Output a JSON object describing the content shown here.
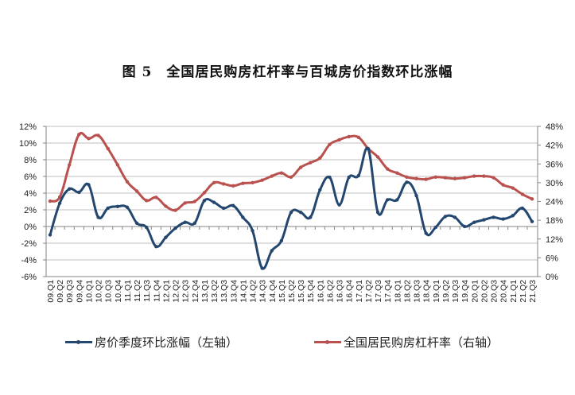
{
  "title": "图 5　全国居民购房杠杆率与百城房价指数环比涨幅",
  "legend": {
    "series1": "房价季度环比涨幅（左轴）",
    "series2": "全国居民购房杠杆率（右轴）"
  },
  "colors": {
    "series1": "#24476F",
    "series2": "#B9514F",
    "grid": "#BFBFBF",
    "axis": "#868686"
  },
  "chart_data": {
    "type": "line",
    "title": "图 5　全国居民购房杠杆率与百城房价指数环比涨幅",
    "xlabel": "",
    "ylabel": "",
    "y2label": "",
    "grid": true,
    "legend_position": "bottom",
    "ylim": [
      -6,
      12
    ],
    "y_ticks": [
      "12%",
      "10%",
      "8%",
      "6%",
      "4%",
      "2%",
      "0%",
      "-2%",
      "-4%",
      "-6%"
    ],
    "y2lim": [
      0,
      48
    ],
    "y2_ticks": [
      "48%",
      "42%",
      "36%",
      "30%",
      "24%",
      "18%",
      "12%",
      "6%",
      "0%"
    ],
    "categories": [
      "09.Q1",
      "09.Q2",
      "09.Q3",
      "09.Q4",
      "10.Q1",
      "10.Q2",
      "10.Q3",
      "10.Q4",
      "11.Q1",
      "11.Q2",
      "11.Q3",
      "11.Q4",
      "12.Q1",
      "12.Q2",
      "12.Q3",
      "12.Q4",
      "13.Q1",
      "13.Q2",
      "13.Q3",
      "13.Q4",
      "14.Q1",
      "14.Q2",
      "14.Q3",
      "14.Q4",
      "15.Q1",
      "15.Q2",
      "15.Q3",
      "15.Q4",
      "16.Q1",
      "16.Q2",
      "16.Q3",
      "16.Q4",
      "17.Q1",
      "17.Q2",
      "17.Q3",
      "17.Q4",
      "18.Q1",
      "18.Q2",
      "18.Q3",
      "18.Q4",
      "19.Q1",
      "19.Q2",
      "19.Q3",
      "19.Q4",
      "20.Q1",
      "20.Q2",
      "20.Q3",
      "20.Q4",
      "21.Q1",
      "21.Q2",
      "21.Q3"
    ],
    "series": [
      {
        "name": "房价季度环比涨幅（左轴）",
        "axis": "left",
        "unit": "%",
        "values": [
          -1.0,
          2.8,
          4.5,
          4.1,
          5.0,
          1.1,
          2.2,
          2.4,
          2.3,
          0.4,
          -0.1,
          -2.4,
          -1.3,
          -0.2,
          0.5,
          0.4,
          3.1,
          2.9,
          2.2,
          2.5,
          1.1,
          -0.5,
          -5.0,
          -2.9,
          -1.7,
          1.7,
          1.7,
          1.1,
          4.4,
          5.9,
          2.6,
          5.9,
          6.1,
          9.3,
          1.7,
          3.2,
          3.2,
          5.3,
          3.7,
          -0.8,
          -0.1,
          1.2,
          1.1,
          0.0,
          0.5,
          0.8,
          1.1,
          0.9,
          1.3,
          2.2,
          0.6
        ]
      },
      {
        "name": "全国居民购房杠杆率（右轴）",
        "axis": "right",
        "unit": "%",
        "values": [
          24.1,
          25.4,
          35.7,
          45.4,
          44.1,
          45.1,
          40.9,
          35.7,
          30.3,
          27.3,
          24.3,
          25.3,
          22.5,
          21.2,
          23.5,
          24.0,
          26.8,
          30.0,
          29.6,
          29.0,
          29.8,
          30.0,
          30.8,
          32.1,
          33.1,
          31.8,
          34.9,
          36.4,
          37.9,
          42.2,
          43.7,
          44.7,
          44.5,
          40.9,
          38.2,
          34.4,
          33.1,
          31.8,
          31.3,
          31.1,
          31.8,
          31.6,
          31.3,
          31.6,
          32.1,
          32.1,
          31.6,
          29.3,
          28.3,
          26.3,
          24.8
        ]
      }
    ]
  }
}
